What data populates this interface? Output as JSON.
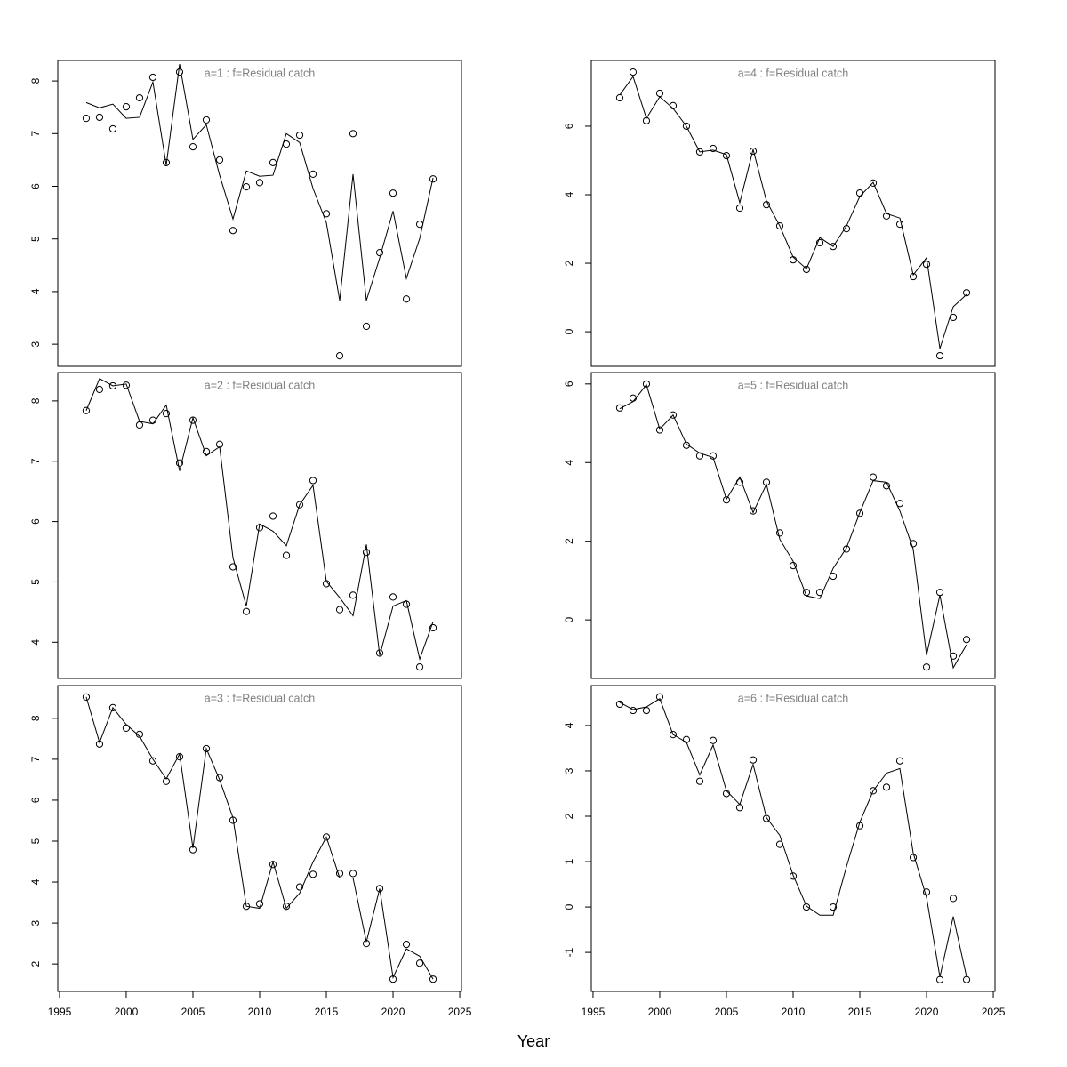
{
  "xlabel": "Year",
  "chart_data": [
    {
      "type": "line",
      "title": "a=1  :  f=Residual catch",
      "x": [
        1997,
        1998,
        1999,
        2000,
        2001,
        2002,
        2003,
        2004,
        2005,
        2006,
        2007,
        2008,
        2009,
        2010,
        2011,
        2012,
        2013,
        2014,
        2015,
        2016,
        2017,
        2018,
        2019,
        2020,
        2021,
        2022,
        2023
      ],
      "series": [
        {
          "color": "#000000",
          "marker": "circle",
          "values": [
            7.29,
            7.31,
            7.09,
            7.51,
            7.68,
            8.07,
            6.45,
            8.17,
            6.75,
            7.26,
            6.5,
            5.16,
            5.99,
            6.07,
            6.45,
            6.8,
            6.97,
            6.23,
            5.48,
            2.78,
            7.0,
            3.34,
            4.74,
            5.87,
            3.86,
            5.28,
            6.14
          ]
        },
        {
          "color": "#000000",
          "marker": "none",
          "values": [
            7.59,
            7.49,
            7.56,
            7.29,
            7.31,
            7.98,
            6.4,
            8.32,
            6.89,
            7.17,
            6.21,
            5.38,
            6.29,
            6.19,
            6.21,
            7.0,
            6.83,
            5.96,
            5.31,
            3.83,
            6.23,
            3.83,
            4.64,
            5.53,
            4.25,
            5.01,
            6.16
          ]
        }
      ],
      "xlim": [
        1994.87,
        2025.13
      ],
      "ylim": [
        2.58,
        8.39
      ],
      "yticks": [
        3,
        4,
        5,
        6,
        7,
        8
      ]
    },
    {
      "type": "line",
      "title": "a=2  :  f=Residual catch",
      "x": [
        1997,
        1998,
        1999,
        2000,
        2001,
        2002,
        2003,
        2004,
        2005,
        2006,
        2007,
        2008,
        2009,
        2010,
        2011,
        2012,
        2013,
        2014,
        2015,
        2016,
        2017,
        2018,
        2019,
        2020,
        2021,
        2022,
        2023
      ],
      "series": [
        {
          "color": "#000000",
          "marker": "circle",
          "values": [
            7.84,
            8.19,
            8.25,
            8.26,
            7.6,
            7.68,
            7.79,
            6.97,
            7.68,
            7.16,
            7.28,
            5.25,
            4.51,
            5.9,
            6.09,
            5.44,
            6.28,
            6.68,
            4.97,
            4.54,
            4.78,
            5.49,
            3.82,
            4.75,
            4.63,
            3.59,
            4.24
          ]
        },
        {
          "color": "#000000",
          "marker": "none",
          "values": [
            7.84,
            8.37,
            8.25,
            8.28,
            7.66,
            7.62,
            7.93,
            6.84,
            7.72,
            7.09,
            7.24,
            5.4,
            4.6,
            5.96,
            5.84,
            5.6,
            6.28,
            6.6,
            5.01,
            4.74,
            4.44,
            5.62,
            3.78,
            4.6,
            4.69,
            3.72,
            4.34
          ]
        }
      ],
      "xlim": [
        1994.87,
        2025.13
      ],
      "ylim": [
        3.4,
        8.47
      ],
      "yticks": [
        4,
        5,
        6,
        7,
        8
      ]
    },
    {
      "type": "line",
      "title": "a=3  :  f=Residual catch",
      "x": [
        1997,
        1998,
        1999,
        2000,
        2001,
        2002,
        2003,
        2004,
        2005,
        2006,
        2007,
        2008,
        2009,
        2010,
        2011,
        2012,
        2013,
        2014,
        2015,
        2016,
        2017,
        2018,
        2019,
        2020,
        2021,
        2022,
        2023
      ],
      "series": [
        {
          "color": "#000000",
          "marker": "circle",
          "values": [
            8.52,
            7.37,
            8.26,
            7.76,
            7.61,
            6.96,
            6.46,
            7.06,
            4.79,
            7.26,
            6.55,
            5.51,
            3.41,
            3.47,
            4.43,
            3.41,
            3.88,
            4.19,
            5.1,
            4.21,
            4.21,
            2.5,
            3.84,
            1.63,
            2.48,
            2.02,
            1.63
          ]
        },
        {
          "color": "#000000",
          "marker": "none",
          "values": [
            8.52,
            7.41,
            8.26,
            7.85,
            7.56,
            7.0,
            6.52,
            7.13,
            4.83,
            7.26,
            6.5,
            5.57,
            3.41,
            3.36,
            4.49,
            3.36,
            3.73,
            4.49,
            5.1,
            4.1,
            4.1,
            2.54,
            3.84,
            1.67,
            2.37,
            2.19,
            1.63
          ]
        }
      ],
      "xlim": [
        1994.87,
        2025.13
      ],
      "ylim": [
        1.33,
        8.8
      ],
      "yticks": [
        2,
        3,
        4,
        5,
        6,
        7,
        8
      ],
      "xticks": [
        1995,
        2000,
        2005,
        2010,
        2015,
        2020,
        2025
      ]
    },
    {
      "type": "line",
      "title": "a=4  :  f=Residual catch",
      "x": [
        1997,
        1998,
        1999,
        2000,
        2001,
        2002,
        2003,
        2004,
        2005,
        2006,
        2007,
        2008,
        2009,
        2010,
        2011,
        2012,
        2013,
        2014,
        2015,
        2016,
        2017,
        2018,
        2019,
        2020,
        2021,
        2022,
        2023
      ],
      "series": [
        {
          "color": "#000000",
          "marker": "circle",
          "values": [
            6.83,
            7.58,
            6.16,
            6.96,
            6.6,
            6.0,
            5.25,
            5.35,
            5.14,
            3.61,
            5.27,
            3.71,
            3.09,
            2.1,
            1.82,
            2.6,
            2.49,
            3.01,
            4.05,
            4.34,
            3.38,
            3.14,
            1.61,
            1.97,
            -0.7,
            0.42,
            1.14
          ]
        },
        {
          "color": "#000000",
          "marker": "none",
          "values": [
            6.91,
            7.45,
            6.23,
            6.86,
            6.52,
            6.0,
            5.25,
            5.3,
            5.17,
            3.77,
            5.32,
            3.82,
            3.09,
            2.18,
            1.84,
            2.75,
            2.49,
            3.09,
            3.95,
            4.36,
            3.45,
            3.32,
            1.66,
            2.16,
            -0.49,
            0.73,
            1.09
          ]
        }
      ],
      "xlim": [
        1994.87,
        2025.13
      ],
      "ylim": [
        -1.01,
        7.92
      ],
      "yticks": [
        0,
        2,
        4,
        6
      ]
    },
    {
      "type": "line",
      "title": "a=5  :  f=Residual catch",
      "x": [
        1997,
        1998,
        1999,
        2000,
        2001,
        2002,
        2003,
        2004,
        2005,
        2006,
        2007,
        2008,
        2009,
        2010,
        2011,
        2012,
        2013,
        2014,
        2015,
        2016,
        2017,
        2018,
        2019,
        2020,
        2021,
        2022,
        2023
      ],
      "series": [
        {
          "color": "#000000",
          "marker": "circle",
          "values": [
            5.39,
            5.64,
            6.0,
            4.83,
            5.21,
            4.44,
            4.17,
            4.17,
            3.05,
            3.5,
            2.77,
            3.5,
            2.21,
            1.38,
            0.7,
            0.7,
            1.11,
            1.8,
            2.71,
            3.63,
            3.41,
            2.96,
            1.94,
            -1.2,
            0.7,
            -0.92,
            -0.5
          ]
        },
        {
          "color": "#000000",
          "marker": "none",
          "values": [
            5.37,
            5.55,
            5.98,
            4.85,
            5.21,
            4.47,
            4.24,
            4.13,
            3.07,
            3.63,
            2.73,
            3.45,
            2.05,
            1.49,
            0.61,
            0.54,
            1.31,
            1.83,
            2.73,
            3.54,
            3.5,
            2.77,
            1.8,
            -0.9,
            0.63,
            -1.22,
            -0.63
          ]
        }
      ],
      "xlim": [
        1994.87,
        2025.13
      ],
      "ylim": [
        -1.49,
        6.29
      ],
      "yticks": [
        0,
        2,
        4,
        6
      ]
    },
    {
      "type": "line",
      "title": "a=6  :  f=Residual catch",
      "x": [
        1997,
        1998,
        1999,
        2000,
        2001,
        2002,
        2003,
        2004,
        2005,
        2006,
        2007,
        2008,
        2009,
        2010,
        2011,
        2012,
        2013,
        2014,
        2015,
        2016,
        2017,
        2018,
        2019,
        2020,
        2021,
        2022,
        2023
      ],
      "series": [
        {
          "color": "#000000",
          "marker": "circle",
          "values": [
            4.47,
            4.33,
            4.33,
            4.63,
            3.8,
            3.69,
            2.77,
            3.67,
            2.5,
            2.19,
            3.24,
            1.95,
            1.38,
            0.68,
            0.0,
            null,
            0.0,
            null,
            1.79,
            2.56,
            2.64,
            3.22,
            1.09,
            0.33,
            -1.6,
            0.19,
            -1.6
          ]
        },
        {
          "color": "#000000",
          "marker": "none",
          "values": [
            4.51,
            4.35,
            4.41,
            4.59,
            3.8,
            3.63,
            2.91,
            3.57,
            2.56,
            2.26,
            3.14,
            1.97,
            1.58,
            0.7,
            0.02,
            -0.18,
            -0.18,
            0.89,
            1.87,
            2.56,
            2.95,
            3.05,
            1.19,
            0.21,
            -1.54,
            -0.21,
            -1.54
          ]
        }
      ],
      "xlim": [
        1994.87,
        2025.13
      ],
      "ylim": [
        -1.86,
        4.88
      ],
      "yticks": [
        -1,
        0,
        1,
        2,
        3,
        4
      ],
      "xticks": [
        1995,
        2000,
        2005,
        2010,
        2015,
        2020,
        2025
      ]
    }
  ]
}
